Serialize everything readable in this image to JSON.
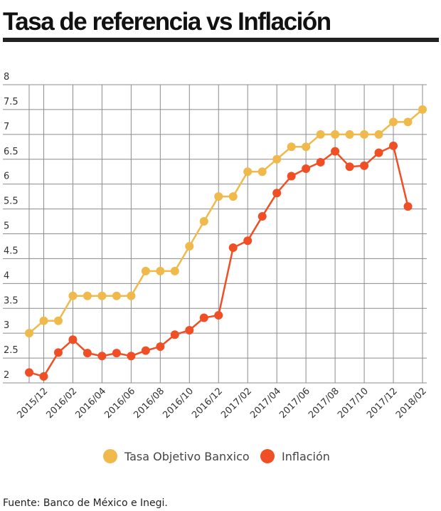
{
  "chart_data": {
    "type": "line",
    "title": "Tasa de referencia vs Inflación",
    "source": "Fuente: Banco de México e Inegi.",
    "categories": [
      null,
      "2015/12",
      null,
      "2016/02",
      null,
      "2016/04",
      null,
      "2016/06",
      null,
      "2016/08",
      null,
      "2016/10",
      null,
      "2016/12",
      null,
      "2017/02",
      null,
      "2017/04",
      null,
      "2017/06",
      null,
      "2017/08",
      null,
      "2017/10",
      null,
      "2017/12",
      null,
      "2018/02"
    ],
    "series": [
      {
        "name": "Tasa Objetivo Banxico",
        "color": "#f0b94b",
        "values": [
          3.0,
          3.25,
          3.25,
          3.75,
          3.75,
          3.75,
          3.75,
          3.75,
          4.25,
          4.25,
          4.25,
          4.75,
          5.25,
          5.75,
          5.75,
          6.25,
          6.25,
          6.5,
          6.75,
          6.75,
          7.0,
          7.0,
          7.0,
          7.0,
          7.0,
          7.25,
          7.25,
          7.5
        ]
      },
      {
        "name": "Inflación",
        "color": "#f04e25",
        "values": [
          2.21,
          2.13,
          2.61,
          2.87,
          2.6,
          2.54,
          2.6,
          2.54,
          2.65,
          2.73,
          2.97,
          3.06,
          3.31,
          3.36,
          4.72,
          4.86,
          5.35,
          5.82,
          6.16,
          6.31,
          6.44,
          6.66,
          6.35,
          6.37,
          6.63,
          6.77,
          5.55,
          null
        ]
      }
    ],
    "ylim": [
      2,
      8
    ],
    "yticks": [
      2,
      2.5,
      3,
      3.5,
      4,
      4.5,
      5,
      5.5,
      6,
      6.5,
      7,
      7.5,
      8
    ],
    "grid": true
  }
}
